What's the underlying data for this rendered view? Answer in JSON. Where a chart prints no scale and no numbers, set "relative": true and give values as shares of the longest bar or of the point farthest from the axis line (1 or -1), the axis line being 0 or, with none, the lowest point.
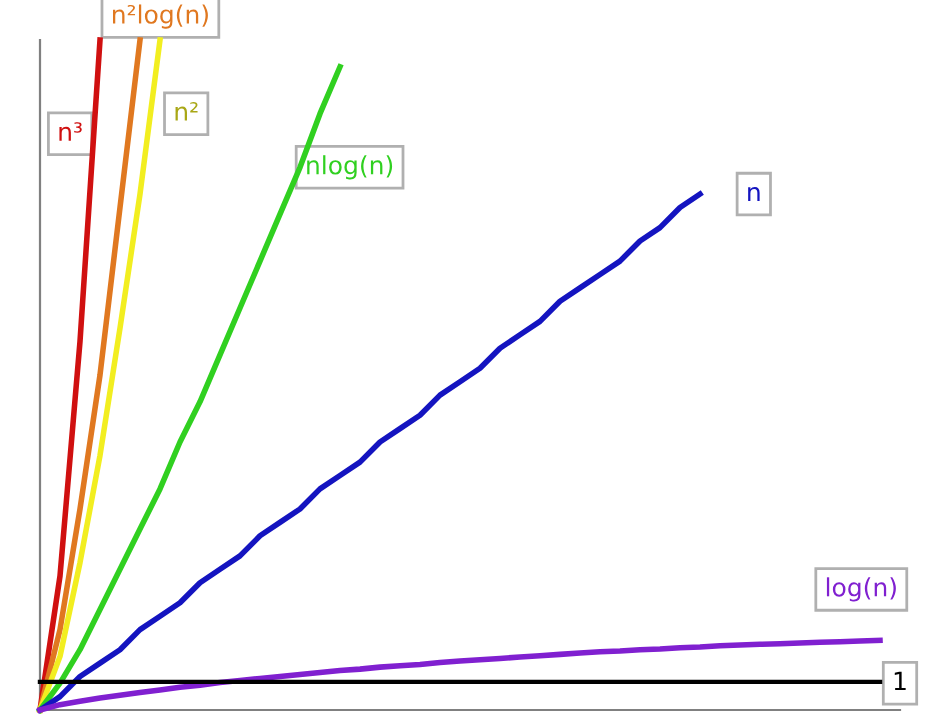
{
  "chart_data": {
    "type": "line",
    "relative": true,
    "legend": false,
    "marker": "none",
    "line_style": "solid",
    "categories": [
      null,
      null,
      null,
      null,
      null,
      null,
      null,
      null,
      null,
      null,
      null,
      null,
      null,
      null,
      null,
      null,
      null,
      null,
      null,
      null,
      null,
      null,
      null,
      null,
      null,
      null,
      null,
      null,
      null,
      null,
      null,
      null,
      null,
      null,
      null,
      null,
      null,
      null,
      null,
      null,
      null,
      null,
      null
    ],
    "series": [
      {
        "name": "n³",
        "color": "#d01010",
        "values": [
          0,
          0.2,
          0.55,
          1.0,
          null,
          null,
          null,
          null,
          null,
          null,
          null,
          null,
          null,
          null,
          null,
          null,
          null,
          null,
          null,
          null,
          null,
          null,
          null,
          null,
          null,
          null,
          null,
          null,
          null,
          null,
          null,
          null,
          null,
          null,
          null,
          null,
          null,
          null,
          null,
          null,
          null,
          null,
          null
        ]
      },
      {
        "name": "n²log(n)",
        "color": "#e07820",
        "values": [
          0,
          0.12,
          0.3,
          0.5,
          0.75,
          1.0,
          null,
          null,
          null,
          null,
          null,
          null,
          null,
          null,
          null,
          null,
          null,
          null,
          null,
          null,
          null,
          null,
          null,
          null,
          null,
          null,
          null,
          null,
          null,
          null,
          null,
          null,
          null,
          null,
          null,
          null,
          null,
          null,
          null,
          null,
          null,
          null,
          null
        ]
      },
      {
        "name": "n²",
        "color": "#f2ee20",
        "values": [
          0,
          0.08,
          0.22,
          0.38,
          0.57,
          0.77,
          1.0,
          null,
          null,
          null,
          null,
          null,
          null,
          null,
          null,
          null,
          null,
          null,
          null,
          null,
          null,
          null,
          null,
          null,
          null,
          null,
          null,
          null,
          null,
          null,
          null,
          null,
          null,
          null,
          null,
          null,
          null,
          null,
          null,
          null,
          null,
          null,
          null
        ]
      },
      {
        "name": "nlog(n)",
        "color": "#30d020",
        "values": [
          0,
          0.04,
          0.09,
          0.15,
          0.21,
          0.27,
          0.33,
          0.4,
          0.46,
          0.53,
          0.6,
          0.67,
          0.74,
          0.81,
          0.89,
          0.96,
          null,
          null,
          null,
          null,
          null,
          null,
          null,
          null,
          null,
          null,
          null,
          null,
          null,
          null,
          null,
          null,
          null,
          null,
          null,
          null,
          null,
          null,
          null,
          null,
          null,
          null,
          null
        ]
      },
      {
        "name": "n",
        "color": "#1414c0",
        "values": [
          0,
          0.02,
          0.05,
          0.07,
          0.09,
          0.12,
          0.14,
          0.16,
          0.19,
          0.21,
          0.23,
          0.26,
          0.28,
          0.3,
          0.33,
          0.35,
          0.37,
          0.4,
          0.42,
          0.44,
          0.47,
          0.49,
          0.51,
          0.54,
          0.56,
          0.58,
          0.61,
          0.63,
          0.65,
          0.67,
          0.7,
          0.72,
          0.75,
          0.77,
          null,
          null,
          null,
          null,
          null,
          null,
          null,
          null,
          null
        ]
      },
      {
        "name": "log(n)",
        "color": "#8020d0",
        "values": [
          0,
          0.008,
          0.013,
          0.018,
          0.022,
          0.026,
          0.03,
          0.034,
          0.037,
          0.041,
          0.044,
          0.047,
          0.05,
          0.053,
          0.056,
          0.059,
          0.061,
          0.064,
          0.066,
          0.068,
          0.071,
          0.073,
          0.075,
          0.077,
          0.079,
          0.081,
          0.083,
          0.085,
          0.087,
          0.088,
          0.09,
          0.091,
          0.093,
          0.094,
          0.096,
          0.097,
          0.098,
          0.099,
          0.1,
          0.101,
          0.102,
          0.103,
          0.104
        ]
      },
      {
        "name": "1",
        "color": "#000000",
        "values": [
          0.042,
          0.042,
          0.042,
          0.042,
          0.042,
          0.042,
          0.042,
          0.042,
          0.042,
          0.042,
          0.042,
          0.042,
          0.042,
          0.042,
          0.042,
          0.042,
          0.042,
          0.042,
          0.042,
          0.042,
          0.042,
          0.042,
          0.042,
          0.042,
          0.042,
          0.042,
          0.042,
          0.042,
          0.042,
          0.042,
          0.042,
          0.042,
          0.042,
          0.042,
          0.042,
          0.042,
          0.042,
          0.042,
          0.042,
          0.042,
          0.042,
          0.042,
          0.042
        ]
      }
    ]
  }
}
